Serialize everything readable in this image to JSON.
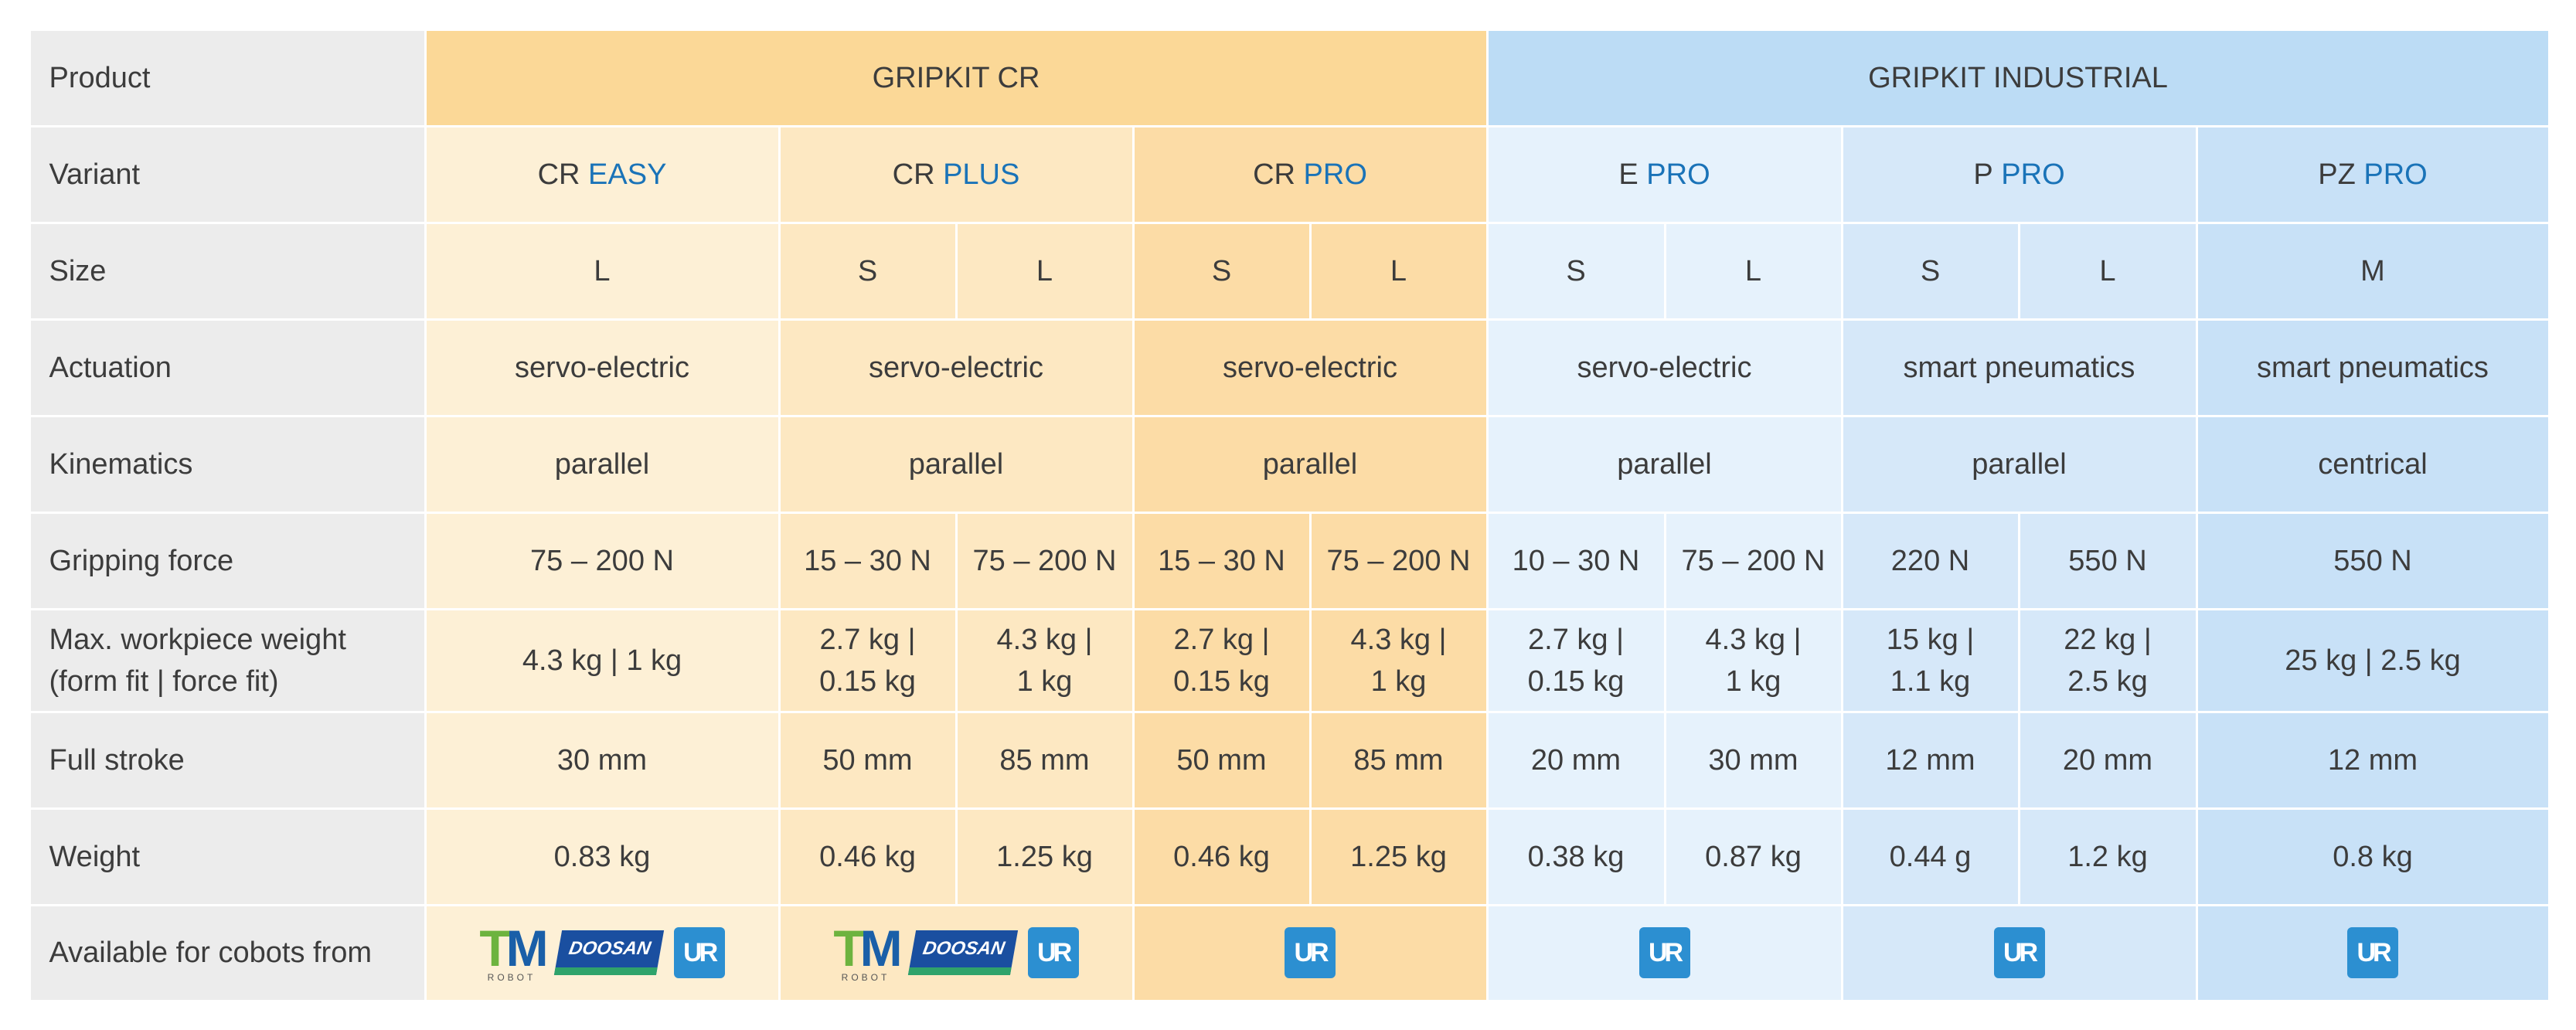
{
  "colors": {
    "header_bg": "#ececec",
    "cr_group": "#fbd897",
    "cr_easy": "#fdf0d6",
    "cr_plus": "#fde8c2",
    "cr_pro": "#fcdca6",
    "ind_group": "#bcdcf5",
    "e_pro": "#e6f2fc",
    "p_pro": "#d6e8f9",
    "pz_pro": "#c8e1f7",
    "accent": "#1a73b8",
    "text": "#3c3c3c"
  },
  "row_labels": [
    "Product",
    "Variant",
    "Size",
    "Actuation",
    "Kinematics",
    "Gripping force",
    "Max. workpiece weight\n(form fit | force fit)",
    "Full stroke",
    "Weight",
    "Available for cobots from"
  ],
  "products": [
    "GRIPKIT CR",
    "GRIPKIT INDUSTRIAL"
  ],
  "variants": [
    {
      "prefix": "CR",
      "suffix": "EASY"
    },
    {
      "prefix": "CR",
      "suffix": "PLUS"
    },
    {
      "prefix": "CR",
      "suffix": "PRO"
    },
    {
      "prefix": "E",
      "suffix": "PRO"
    },
    {
      "prefix": "P",
      "suffix": "PRO"
    },
    {
      "prefix": "PZ",
      "suffix": "PRO"
    }
  ],
  "sizes": [
    "L",
    "S",
    "L",
    "S",
    "L",
    "S",
    "L",
    "S",
    "L",
    "M"
  ],
  "actuation": [
    "servo-electric",
    "servo-electric",
    "servo-electric",
    "servo-electric",
    "smart pneumatics",
    "smart pneumatics"
  ],
  "kinematics": [
    "parallel",
    "parallel",
    "parallel",
    "parallel",
    "parallel",
    "centrical"
  ],
  "gripping_force": [
    "75 – 200 N",
    "15 – 30 N",
    "75 – 200 N",
    "15 – 30 N",
    "75 – 200 N",
    "10 – 30 N",
    "75 – 200 N",
    "220 N",
    "550 N",
    "550 N"
  ],
  "max_weight": [
    "4.3 kg | 1 kg",
    "2.7 kg |\n0.15 kg",
    "4.3 kg |\n1 kg",
    "2.7 kg |\n0.15 kg",
    "4.3 kg |\n1 kg",
    "2.7 kg |\n0.15 kg",
    "4.3 kg |\n1 kg",
    "15 kg |\n1.1 kg",
    "22 kg |\n2.5 kg",
    "25 kg | 2.5 kg"
  ],
  "full_stroke": [
    "30 mm",
    "50 mm",
    "85 mm",
    "50 mm",
    "85 mm",
    "20 mm",
    "30 mm",
    "12 mm",
    "20 mm",
    "12 mm"
  ],
  "weight": [
    "0.83 kg",
    "0.46 kg",
    "1.25 kg",
    "0.46 kg",
    "1.25 kg",
    "0.38 kg",
    "0.87 kg",
    "0.44 g",
    "1.2 kg",
    "0.8 kg"
  ],
  "cobots": [
    [
      "tm-robot-logo",
      "doosan-logo",
      "ur-logo"
    ],
    [
      "tm-robot-logo",
      "doosan-logo",
      "ur-logo"
    ],
    [
      "ur-logo"
    ],
    [
      "ur-logo"
    ],
    [
      "ur-logo"
    ],
    [
      "ur-logo"
    ]
  ],
  "logo_text": {
    "tm_t": "T",
    "tm_m": "M",
    "tm_sub": "ROBOT",
    "doosan": "DOOSAN",
    "ur": "UR"
  }
}
